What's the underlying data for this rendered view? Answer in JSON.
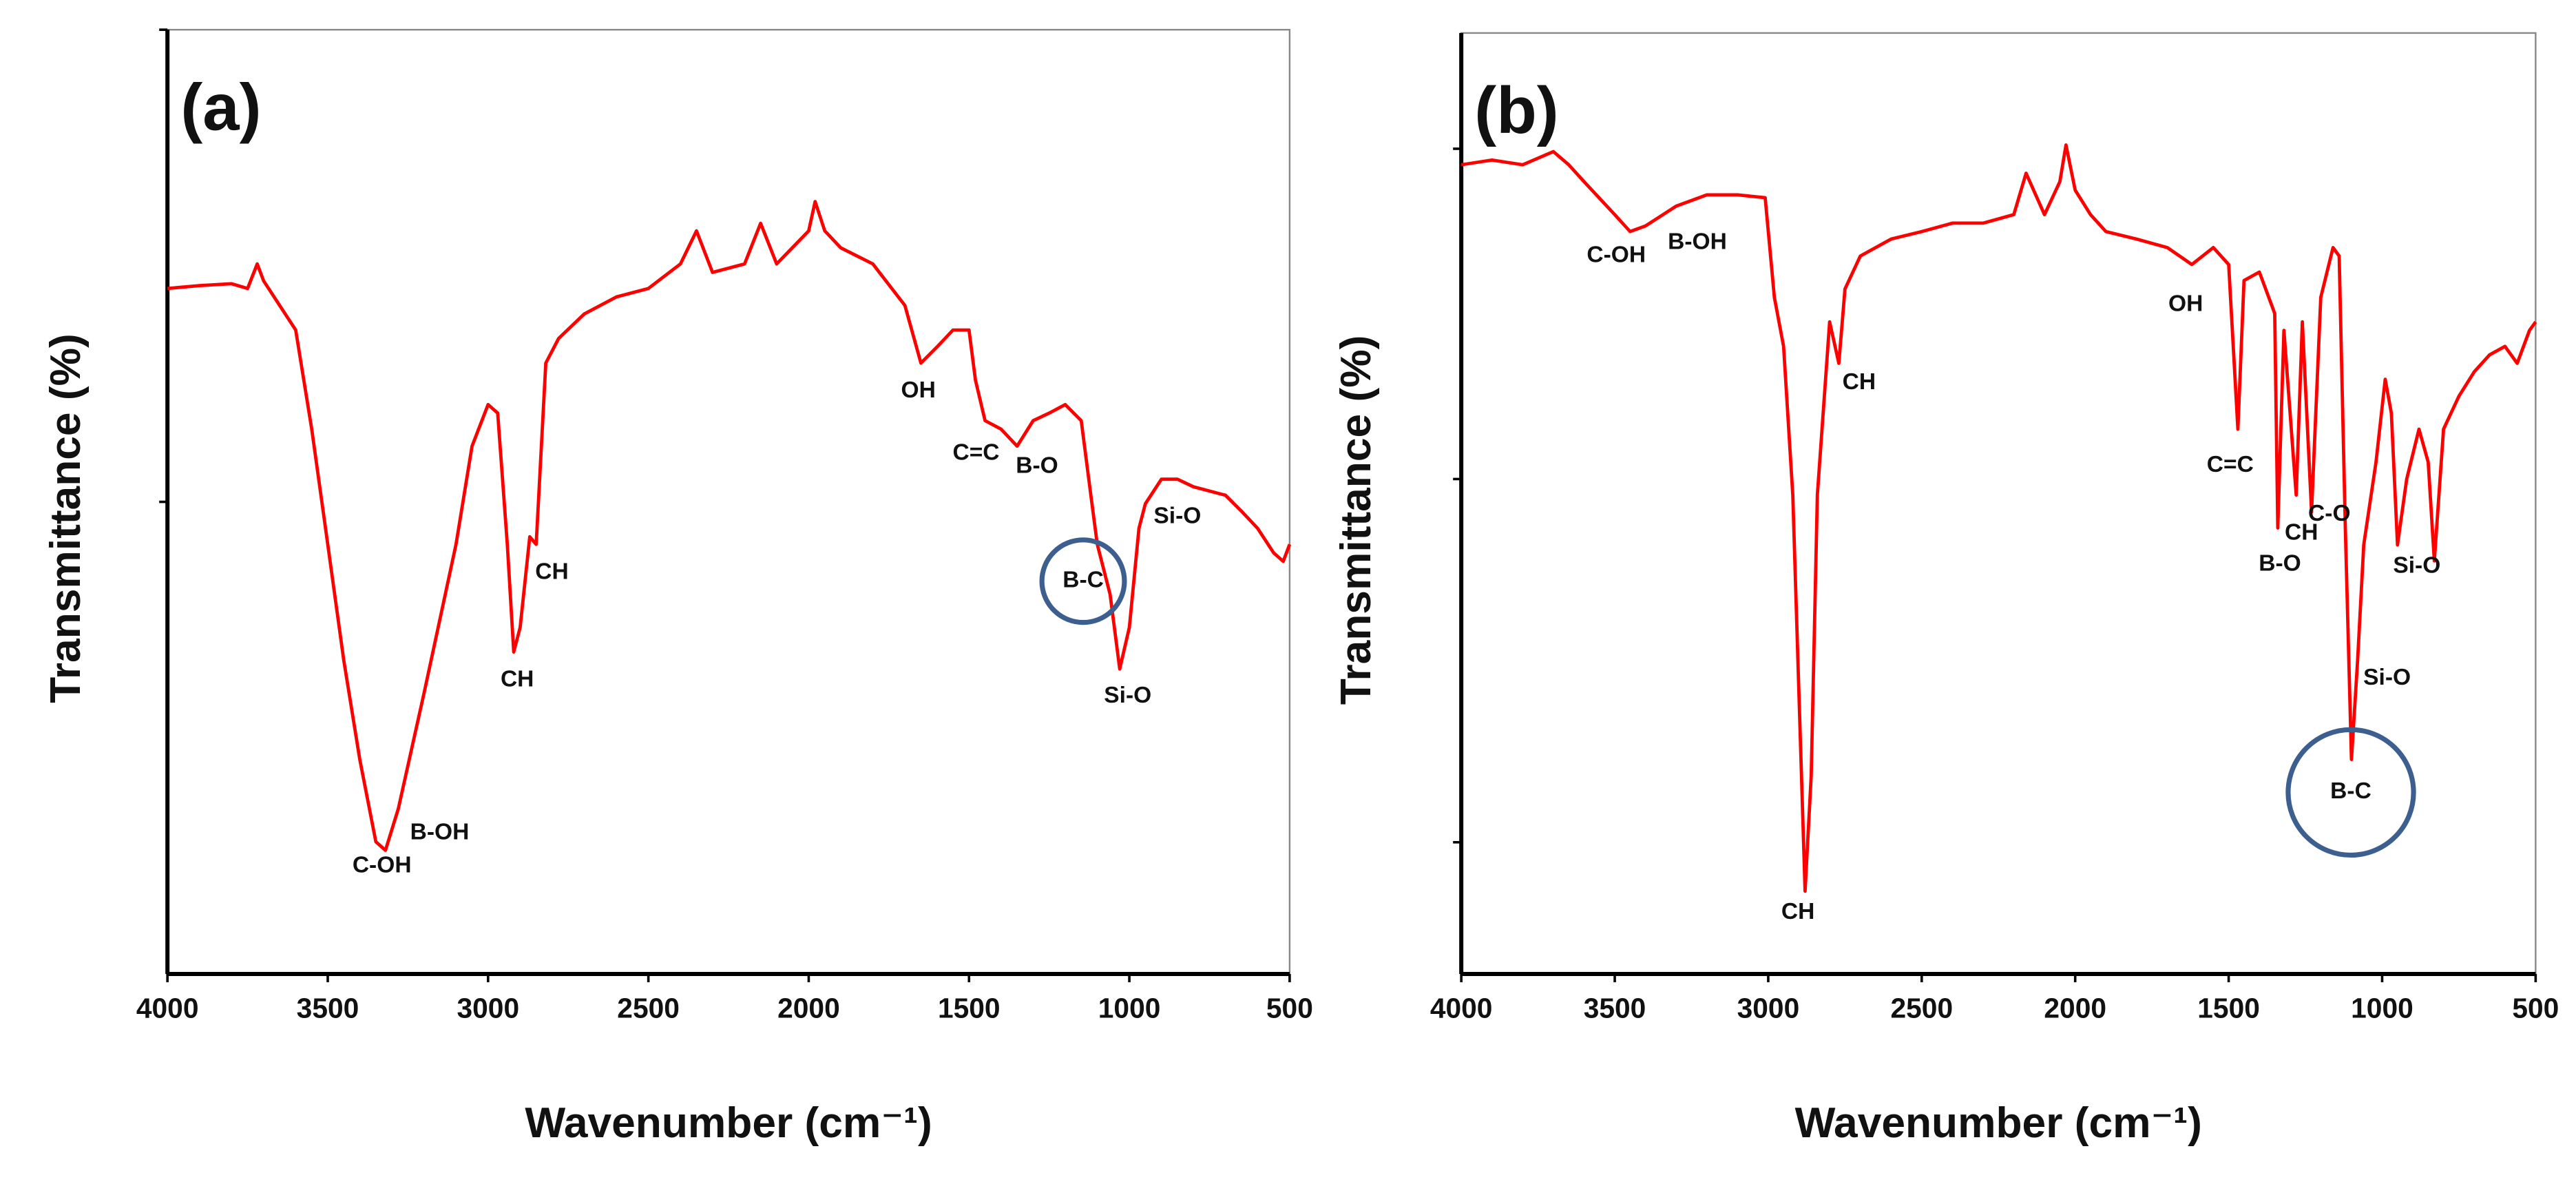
{
  "chart_data": [
    {
      "type": "line",
      "title": "(a)",
      "x_label": "Wavenumber (cm⁻¹)",
      "y_label": "Transmittance (%)",
      "color": "#ff0000",
      "xlim": [
        4000,
        500
      ],
      "xticks": [
        4000,
        3500,
        3000,
        2500,
        2000,
        1500,
        1000,
        500
      ],
      "ylim": [
        0,
        100
      ],
      "yticks": [
        50,
        100
      ],
      "x": [
        4000,
        3900,
        3800,
        3750,
        3720,
        3700,
        3650,
        3600,
        3550,
        3500,
        3450,
        3400,
        3350,
        3320,
        3280,
        3200,
        3100,
        3050,
        3000,
        2970,
        2940,
        2920,
        2900,
        2870,
        2850,
        2820,
        2780,
        2700,
        2600,
        2500,
        2400,
        2350,
        2300,
        2200,
        2150,
        2100,
        2000,
        1980,
        1950,
        1900,
        1800,
        1700,
        1650,
        1600,
        1550,
        1500,
        1480,
        1450,
        1400,
        1350,
        1300,
        1250,
        1200,
        1150,
        1120,
        1100,
        1060,
        1030,
        1000,
        970,
        950,
        900,
        850,
        800,
        700,
        650,
        600,
        550,
        520,
        500
      ],
      "values": [
        72.6,
        72.9,
        73.1,
        72.6,
        75.2,
        73.4,
        70.8,
        68.2,
        57.7,
        45.5,
        33.2,
        22.7,
        14.0,
        13.1,
        17.5,
        29.7,
        45.5,
        55.9,
        60.3,
        59.4,
        45.5,
        34.1,
        36.7,
        46.3,
        45.5,
        64.7,
        67.3,
        69.9,
        71.7,
        72.6,
        75.2,
        78.7,
        74.3,
        75.2,
        79.5,
        75.2,
        78.7,
        81.8,
        78.7,
        76.9,
        75.2,
        70.8,
        64.7,
        66.4,
        68.2,
        68.2,
        62.9,
        58.6,
        57.7,
        55.9,
        58.6,
        59.4,
        60.3,
        58.6,
        50.7,
        45.5,
        40.2,
        32.3,
        36.7,
        47.2,
        49.8,
        52.4,
        52.4,
        51.6,
        50.7,
        49.0,
        47.2,
        44.6,
        43.7,
        45.5
      ],
      "annotations": [
        {
          "text": "C-OH",
          "x": 3331,
          "y": 11.4
        },
        {
          "text": "B-OH",
          "x": 3151,
          "y": 14.9
        },
        {
          "text": "CH",
          "x": 2909,
          "y": 31.1
        },
        {
          "text": "CH",
          "x": 2801,
          "y": 42.5
        },
        {
          "text": "OH",
          "x": 1658,
          "y": 61.7
        },
        {
          "text": "C=C",
          "x": 1478,
          "y": 55.1
        },
        {
          "text": "B-O",
          "x": 1288,
          "y": 53.7
        },
        {
          "text": "B-C",
          "x": 1144,
          "y": 41.6,
          "circled": true
        },
        {
          "text": "Si-O",
          "x": 850,
          "y": 48.4
        },
        {
          "text": "Si-O",
          "x": 1005,
          "y": 29.4
        }
      ]
    },
    {
      "type": "line",
      "title": "(b)",
      "x_label": "Wavenumber (cm⁻¹)",
      "y_label": "Transmittance (%)",
      "color": "#ff0000",
      "xlim": [
        4000,
        500
      ],
      "xticks": [
        4000,
        3500,
        3000,
        2500,
        2000,
        1500,
        1000,
        500
      ],
      "ylim": [
        0,
        100
      ],
      "yticks": [
        14.0,
        52.6,
        87.7
      ],
      "x": [
        4000,
        3900,
        3800,
        3700,
        3650,
        3600,
        3500,
        3450,
        3400,
        3300,
        3200,
        3100,
        3010,
        2980,
        2950,
        2920,
        2900,
        2880,
        2860,
        2840,
        2800,
        2770,
        2750,
        2700,
        2600,
        2500,
        2400,
        2300,
        2200,
        2160,
        2100,
        2050,
        2030,
        2000,
        1950,
        1900,
        1800,
        1700,
        1620,
        1550,
        1500,
        1470,
        1450,
        1400,
        1350,
        1340,
        1320,
        1280,
        1260,
        1230,
        1200,
        1160,
        1140,
        1120,
        1100,
        1080,
        1060,
        1020,
        990,
        970,
        950,
        920,
        880,
        850,
        830,
        800,
        750,
        700,
        650,
        600,
        560,
        520,
        500
      ],
      "values": [
        86.0,
        86.5,
        86.0,
        87.4,
        86.0,
        84.2,
        80.7,
        78.9,
        79.5,
        81.6,
        82.8,
        82.8,
        82.5,
        71.9,
        66.7,
        50.9,
        29.8,
        8.8,
        21.1,
        50.9,
        69.3,
        64.9,
        72.8,
        76.3,
        78.1,
        78.9,
        79.8,
        79.8,
        80.7,
        85.1,
        80.7,
        84.2,
        88.1,
        83.3,
        80.7,
        78.9,
        78.1,
        77.2,
        75.4,
        77.2,
        75.4,
        57.9,
        73.7,
        74.6,
        70.2,
        47.4,
        68.4,
        50.9,
        69.3,
        49.1,
        71.9,
        77.2,
        76.3,
        47.4,
        22.8,
        33.3,
        45.6,
        54.4,
        63.2,
        59.6,
        45.6,
        52.6,
        57.9,
        54.4,
        43.9,
        57.9,
        61.4,
        64.0,
        65.8,
        66.7,
        64.9,
        68.4,
        69.3
      ],
      "annotations": [
        {
          "text": "C-OH",
          "x": 3495,
          "y": 76.3
        },
        {
          "text": "B-OH",
          "x": 3231,
          "y": 77.7
        },
        {
          "text": "CH",
          "x": 2704,
          "y": 62.8
        },
        {
          "text": "CH",
          "x": 2903,
          "y": 6.5
        },
        {
          "text": "OH",
          "x": 1640,
          "y": 71.1
        },
        {
          "text": "C=C",
          "x": 1495,
          "y": 54.0
        },
        {
          "text": "B-O",
          "x": 1333,
          "y": 43.5
        },
        {
          "text": "CH",
          "x": 1263,
          "y": 46.8
        },
        {
          "text": "C-O",
          "x": 1172,
          "y": 48.8
        },
        {
          "text": "Si-O",
          "x": 887,
          "y": 43.3
        },
        {
          "text": "Si-O",
          "x": 984,
          "y": 31.4
        },
        {
          "text": "B-C",
          "x": 1102,
          "y": 19.3,
          "circled": true
        }
      ]
    }
  ]
}
